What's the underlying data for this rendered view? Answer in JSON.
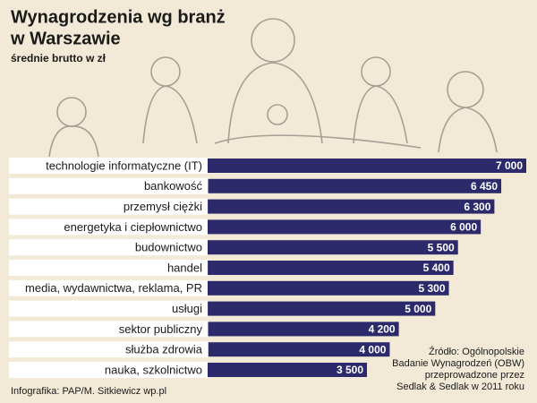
{
  "chart_data": {
    "type": "bar",
    "title": [
      "Wynagrodzenia wg branż",
      "w Warszawie"
    ],
    "subtitle": "średnie brutto w zł",
    "categories": [
      "technologie informatyczne (IT)",
      "bankowość",
      "przemysł ciężki",
      "energetyka i ciepłownictwo",
      "budownictwo",
      "handel",
      "media, wydawnictwa, reklama, PR",
      "usługi",
      "sektor publiczny",
      "służba zdrowia",
      "nauka, szkolnictwo"
    ],
    "values": [
      7000,
      6450,
      6300,
      6000,
      5500,
      5400,
      5300,
      5000,
      4200,
      4000,
      3500
    ],
    "value_labels": [
      "7 000",
      "6 450",
      "6 300",
      "6 000",
      "5 500",
      "5 400",
      "5 300",
      "5 000",
      "4 200",
      "4 000",
      "3 500"
    ],
    "color": "#2d2a6b",
    "source": [
      "Źródło: Ogólnopolskie",
      "Badanie Wynagrodzeń (OBW)",
      "przeprowadzone przez",
      "Sedlak & Sedlak w 2011 roku"
    ],
    "credit": "Infografika: PAP/M. Sitkiewicz wp.pl"
  }
}
